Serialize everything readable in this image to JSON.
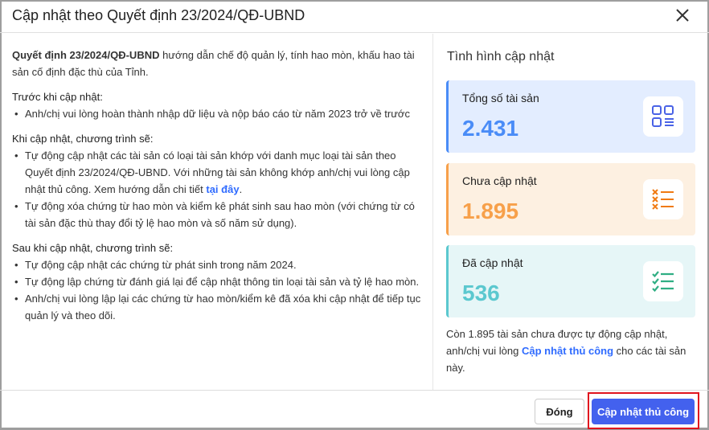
{
  "dialog": {
    "title": "Cập nhật theo Quyết định 23/2024/QĐ-UBND"
  },
  "left": {
    "intro_bold": "Quyết định 23/2024/QĐ-UBND",
    "intro_rest": " hướng dẫn chế độ quản lý, tính hao mòn, khấu hao tài sản cố định đặc thù của Tỉnh.",
    "before_heading": "Trước khi cập nhật:",
    "before_items": [
      "Anh/chị vui lòng hoàn thành nhập dữ liệu và nộp báo cáo từ năm 2023 trở về trước"
    ],
    "during_heading": "Khi cập nhật, chương trình sẽ:",
    "during_item1_text": "Tự động cập nhật các tài sản có loại tài sản khớp với danh mục loại tài sản theo Quyết định 23/2024/QĐ-UBND. Với những tài sản không khớp anh/chị vui lòng cập nhật thủ công. Xem hướng dẫn chi tiết ",
    "during_item1_link": "tại đây",
    "during_item1_end": ".",
    "during_item2": "Tự động xóa chứng từ hao mòn và kiểm kê phát sinh sau hao mòn (với chứng từ có tài sản đặc thù thay đổi tỷ lệ hao mòn và số năm sử dụng).",
    "after_heading": "Sau khi cập nhật, chương trình sẽ:",
    "after_items": [
      "Tự động cập nhật các chứng từ phát sinh trong năm 2024.",
      "Tự động lập chứng từ đánh giá lại để cập nhật thông tin loại tài sản và tỷ lệ hao mòn.",
      "Anh/chị vui lòng lập lại các chứng từ hao mòn/kiểm kê đã xóa khi cập nhật để tiếp tục quản lý và theo dõi."
    ]
  },
  "status": {
    "title": "Tình hình cập nhật",
    "cards": [
      {
        "label": "Tổng số tài sản",
        "value": "2.431",
        "icon": "grid-list-icon",
        "color": "#4a8cf7",
        "bg": "#e3edff"
      },
      {
        "label": "Chưa cập nhật",
        "value": "1.895",
        "icon": "x-list-icon",
        "color": "#f7a04a",
        "bg": "#fdf0e1"
      },
      {
        "label": "Đã cập nhật",
        "value": "536",
        "icon": "check-list-icon",
        "color": "#5bc8cf",
        "bg": "#e6f6f7"
      }
    ],
    "note_pre": "Còn 1.895 tài sản chưa được tự động cập nhật, anh/chị vui lòng ",
    "note_link": "Cập nhật thủ công",
    "note_post": " cho các tài sản này."
  },
  "footer": {
    "close_label": "Đóng",
    "primary_label": "Cập nhật thủ công"
  }
}
